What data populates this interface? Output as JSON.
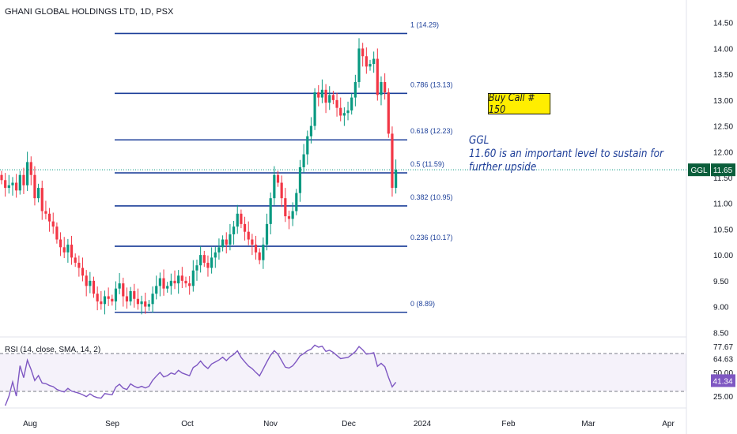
{
  "header": {
    "title": "GHANI GLOBAL HOLDINGS LTD, 1D, PSX"
  },
  "annotation": {
    "buy_call": "Buy Call # 150",
    "note_lines": [
      "GGL",
      "11.60 is an important level to sustain for",
      "further upside"
    ]
  },
  "price_tag": {
    "symbol": "GGL",
    "value": "11.65"
  },
  "colors": {
    "up": "#089981",
    "down": "#f23645",
    "fib": "#1c3f99",
    "rsi": "#7e57c2",
    "tag": "#0b5e3b"
  },
  "chart_data": {
    "type": "candlestick",
    "x_labels": [
      "Aug",
      "Sep",
      "Oct",
      "Nov",
      "Dec",
      "2024",
      "Feb",
      "Mar",
      "Apr"
    ],
    "y_ticks": [
      14.5,
      14.0,
      13.5,
      13.0,
      12.5,
      12.0,
      11.5,
      11.0,
      10.5,
      10.0,
      9.5,
      9.0,
      8.5
    ],
    "y_tick_labels": [
      "14.50",
      "14.00",
      "13.50",
      "13.00",
      "12.50",
      "12.00",
      "11.50",
      "11.00",
      "10.50",
      "10.00",
      "9.50",
      "9.00",
      "8.50"
    ],
    "last_price": 11.65,
    "fib_levels": [
      {
        "label": "1 (14.29)",
        "value": 14.29
      },
      {
        "label": "0.786 (13.13)",
        "value": 13.13
      },
      {
        "label": "0.618 (12.23)",
        "value": 12.23
      },
      {
        "label": "0.5 (11.59)",
        "value": 11.59
      },
      {
        "label": "0.382 (10.95)",
        "value": 10.95
      },
      {
        "label": "0.236 (10.17)",
        "value": 10.17
      },
      {
        "label": "0 (8.89)",
        "value": 8.89
      }
    ],
    "close_series": [
      11.45,
      11.3,
      11.35,
      11.4,
      11.25,
      11.55,
      11.35,
      11.8,
      11.55,
      11.1,
      11.3,
      10.85,
      10.8,
      10.65,
      10.55,
      10.3,
      10.15,
      10.05,
      10.2,
      9.95,
      9.85,
      9.75,
      9.6,
      9.4,
      9.5,
      9.25,
      9.1,
      9.05,
      9.2,
      9.15,
      9.1,
      9.35,
      9.45,
      9.2,
      9.1,
      9.3,
      9.15,
      9.05,
      9.1,
      9.0,
      9.05,
      9.25,
      9.4,
      9.55,
      9.35,
      9.4,
      9.5,
      9.45,
      9.6,
      9.5,
      9.45,
      9.4,
      9.7,
      9.8,
      10.0,
      9.85,
      9.75,
      9.95,
      10.05,
      10.15,
      10.3,
      10.2,
      10.4,
      10.55,
      10.8,
      10.6,
      10.45,
      10.3,
      10.2,
      10.05,
      9.9,
      10.2,
      10.6,
      11.1,
      11.55,
      11.4,
      11.1,
      10.75,
      10.7,
      10.85,
      11.2,
      11.7,
      11.95,
      12.3,
      12.5,
      13.15,
      13.05,
      13.2,
      12.95,
      13.1,
      13.0,
      12.85,
      12.7,
      12.75,
      12.8,
      13.05,
      13.35,
      14.0,
      13.85,
      13.65,
      13.7,
      13.8,
      13.1,
      13.35,
      13.15,
      12.35,
      11.3,
      11.65
    ],
    "rsi": {
      "title": "RSI (14, close, SMA, 14, 2)",
      "ticks": [
        77.67,
        64.63,
        50.0,
        25.0
      ],
      "tick_labels": [
        "77.67",
        "64.63",
        "50.00",
        "25.00"
      ],
      "last_value": "41.34",
      "bands": [
        70,
        30
      ]
    }
  }
}
